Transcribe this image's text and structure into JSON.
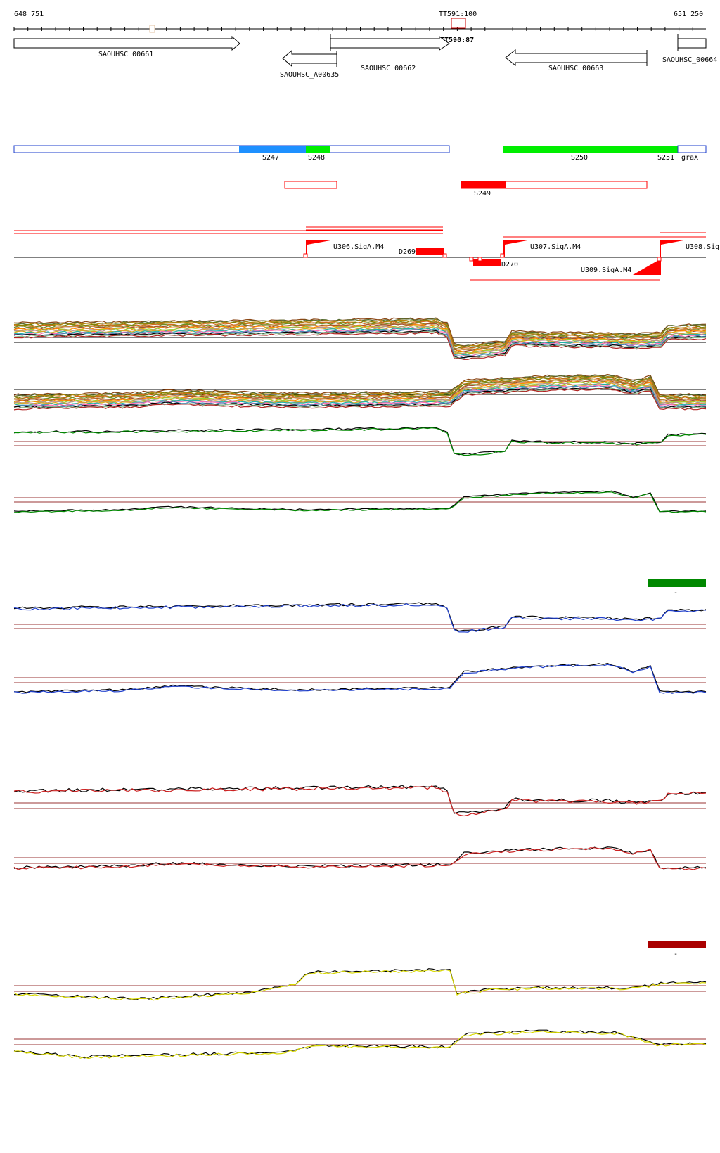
{
  "ruler": {
    "start_label": "648 751",
    "end_label": "651 250",
    "marker_label_top": "TT591:100",
    "marker_label_bottom": "TT590:87"
  },
  "genes": [
    {
      "id": "g661",
      "label": "SAOUHSC_00661"
    },
    {
      "id": "ga635",
      "label": "SAOUHSC_A00635"
    },
    {
      "id": "g662",
      "label": "SAOUHSC_00662"
    },
    {
      "id": "g663",
      "label": "SAOUHSC_00663"
    },
    {
      "id": "g664",
      "label": "SAOUHSC_00664"
    }
  ],
  "segments": [
    {
      "id": "s247",
      "label": "S247"
    },
    {
      "id": "s248",
      "label": "S248"
    },
    {
      "id": "s249",
      "label": "S249"
    },
    {
      "id": "s250",
      "label": "S250"
    },
    {
      "id": "s251",
      "label": "S251"
    },
    {
      "id": "grax",
      "label": "graX"
    }
  ],
  "features": [
    {
      "id": "u306",
      "label": "U306.SigA.M4"
    },
    {
      "id": "u307",
      "label": "U307.SigA.M4"
    },
    {
      "id": "u308",
      "label": "U308.Sig"
    },
    {
      "id": "u309",
      "label": "U309.SigA.M4"
    },
    {
      "id": "d269",
      "label": "D269"
    },
    {
      "id": "d270",
      "label": "D270"
    }
  ],
  "colors": {
    "blue_segment": "#1e90ff",
    "green_segment": "#00ee00",
    "red_feature": "#ff0000",
    "forward_green": "#008800",
    "blue_profile": "#1f3fcc",
    "red_profile": "#cc2222",
    "yellow_profile": "#d8d800",
    "green_legend": "#008800",
    "red_legend": "#aa0000"
  },
  "legend": {
    "green_caption": "-",
    "red_caption": "-"
  }
}
